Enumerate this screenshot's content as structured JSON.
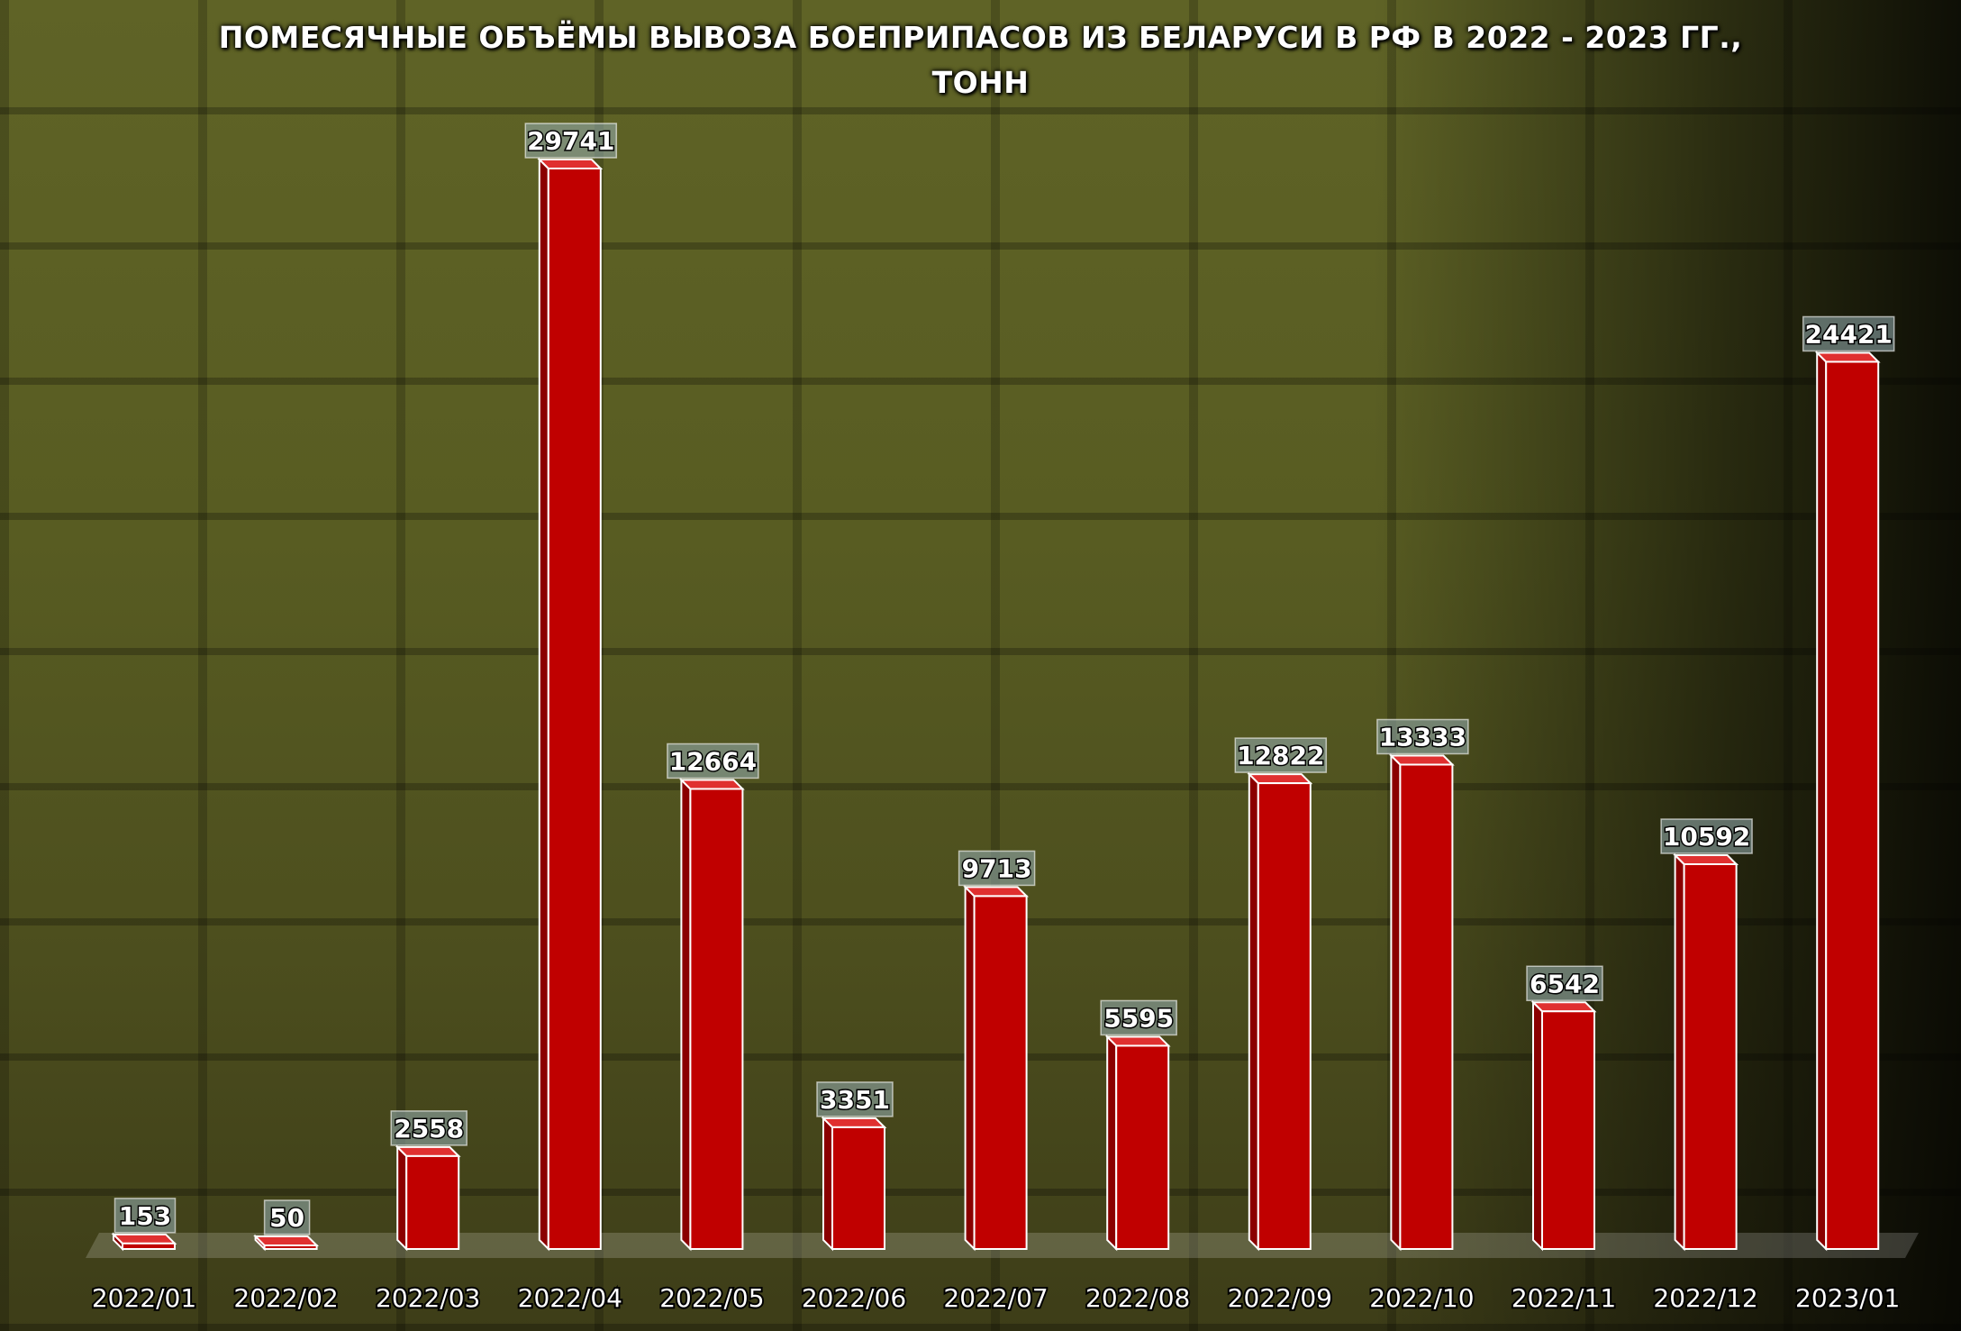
{
  "chart_data": {
    "type": "bar",
    "title": "ПОМЕСЯЧНЫЕ ОБЪЁМЫ ВЫВОЗА БОЕПРИПАСОВ ИЗ БЕЛАРУСИ В РФ В 2022 - 2023 ГГ.,",
    "subtitle": "ТОНН",
    "categories": [
      "2022/01",
      "2022/02",
      "2022/03",
      "2022/04",
      "2022/05",
      "2022/06",
      "2022/07",
      "2022/08",
      "2022/09",
      "2022/10",
      "2022/11",
      "2022/12",
      "2023/01"
    ],
    "values": [
      153,
      50,
      2558,
      29741,
      12664,
      3351,
      9713,
      5595,
      12822,
      13333,
      6542,
      10592,
      24421
    ],
    "xlabel": "",
    "ylabel": "",
    "grid": false,
    "bar_color": "#c00000"
  }
}
